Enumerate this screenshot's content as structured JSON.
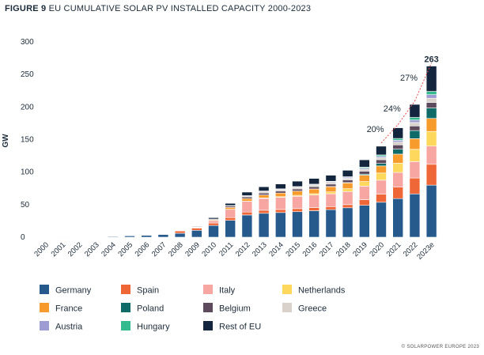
{
  "figure_label": "FIGURE 9",
  "title": "EU CUMULATIVE SOLAR PV INSTALLED CAPACITY 2000-2023",
  "footer": "© SOLARPOWER EUROPE 2023",
  "chart_data": {
    "type": "bar",
    "stacked": true,
    "ylabel": "GW",
    "ylim": [
      0,
      300
    ],
    "yticks": [
      0,
      50,
      100,
      150,
      200,
      250,
      300
    ],
    "grid": false,
    "legend_position": "bottom",
    "categories": [
      "2000",
      "2001",
      "2002",
      "2003",
      "2004",
      "2005",
      "2006",
      "2007",
      "2008",
      "2009",
      "2010",
      "2011",
      "2012",
      "2013",
      "2014",
      "2015",
      "2016",
      "2017",
      "2018",
      "2019",
      "2020",
      "2021",
      "2022",
      "2023e"
    ],
    "series": [
      {
        "name": "Germany",
        "color": "#265a8c",
        "values": [
          0,
          0.1,
          0.2,
          0.4,
          1.1,
          2.1,
          2.9,
          4.2,
          6.1,
          10.6,
          18.0,
          25.9,
          34.1,
          36.7,
          37.9,
          39.2,
          40.7,
          42.3,
          45.2,
          49.0,
          53.7,
          59.3,
          66.5,
          80.0
        ]
      },
      {
        "name": "Spain",
        "color": "#ef6637",
        "values": [
          0,
          0,
          0,
          0,
          0,
          0,
          0.1,
          0.7,
          3.4,
          3.4,
          3.8,
          4.2,
          4.5,
          4.7,
          4.7,
          4.7,
          4.7,
          4.7,
          4.8,
          8.7,
          12.3,
          17.6,
          24.5,
          32.0
        ]
      },
      {
        "name": "Italy",
        "color": "#f7a6a2",
        "values": [
          0,
          0,
          0,
          0,
          0,
          0,
          0,
          0.1,
          0.4,
          1.1,
          3.5,
          12.7,
          16.4,
          18.2,
          18.6,
          18.9,
          19.3,
          19.7,
          20.1,
          20.8,
          21.6,
          22.6,
          25.1,
          28.0
        ]
      },
      {
        "name": "Netherlands",
        "color": "#fdd85c",
        "values": [
          0,
          0,
          0,
          0,
          0,
          0,
          0,
          0,
          0.1,
          0.1,
          0.1,
          0.1,
          0.3,
          0.7,
          1.0,
          1.5,
          2.1,
          2.9,
          4.4,
          7.0,
          11.0,
          14.3,
          18.9,
          22.5
        ]
      },
      {
        "name": "France",
        "color": "#f79b2c",
        "values": [
          0,
          0,
          0,
          0,
          0,
          0,
          0,
          0,
          0.1,
          0.3,
          1.2,
          2.9,
          4.0,
          4.6,
          5.6,
          6.5,
          7.1,
          8.0,
          8.9,
          9.9,
          10.9,
          13.8,
          16.4,
          20.0
        ]
      },
      {
        "name": "Poland",
        "color": "#0e6b68",
        "values": [
          0,
          0,
          0,
          0,
          0,
          0,
          0,
          0,
          0,
          0,
          0,
          0,
          0,
          0,
          0,
          0.1,
          0.2,
          0.3,
          0.5,
          1.5,
          3.9,
          7.7,
          12.4,
          16.0
        ]
      },
      {
        "name": "Belgium",
        "color": "#5d4a5c",
        "values": [
          0,
          0,
          0,
          0,
          0,
          0,
          0,
          0,
          0.1,
          0.6,
          1.0,
          2.0,
          2.6,
          2.9,
          3.0,
          3.2,
          3.4,
          3.7,
          4.0,
          4.6,
          5.6,
          6.5,
          7.1,
          8.5
        ]
      },
      {
        "name": "Greece",
        "color": "#d8d1cc",
        "values": [
          0,
          0,
          0,
          0,
          0,
          0,
          0,
          0,
          0,
          0,
          0.2,
          0.6,
          1.5,
          2.6,
          2.6,
          2.6,
          2.6,
          2.6,
          2.7,
          2.9,
          3.3,
          4.3,
          5.3,
          6.5
        ]
      },
      {
        "name": "Austria",
        "color": "#9d9cd3",
        "values": [
          0,
          0,
          0,
          0,
          0,
          0,
          0,
          0,
          0,
          0,
          0.1,
          0.2,
          0.4,
          0.6,
          0.8,
          0.9,
          1.1,
          1.3,
          1.5,
          1.7,
          2.0,
          2.8,
          3.8,
          5.5
        ]
      },
      {
        "name": "Hungary",
        "color": "#33bb8f",
        "values": [
          0,
          0,
          0,
          0,
          0,
          0,
          0,
          0,
          0,
          0,
          0,
          0,
          0,
          0,
          0.1,
          0.2,
          0.3,
          0.4,
          0.8,
          1.5,
          2.1,
          2.8,
          4.0,
          5.0
        ]
      },
      {
        "name": "Rest of EU",
        "color": "#13263d",
        "values": [
          0,
          0,
          0,
          0,
          0,
          0,
          0,
          0,
          0.1,
          0.9,
          2.1,
          3.4,
          5.5,
          6.5,
          7.5,
          8.3,
          8.8,
          9.3,
          9.9,
          11.3,
          13.4,
          16.4,
          20.0,
          38.9
        ]
      }
    ],
    "annotations": [
      {
        "category": "2020",
        "text": "20%"
      },
      {
        "category": "2021",
        "text": "24%"
      },
      {
        "category": "2022",
        "text": "27%"
      },
      {
        "category": "2023e",
        "text": "263"
      }
    ]
  }
}
